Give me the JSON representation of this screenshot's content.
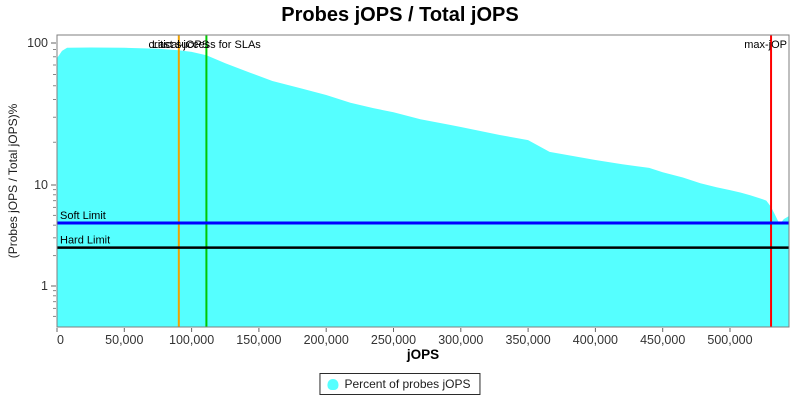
{
  "title": "Probes jOPS / Total jOPS",
  "chart_data": {
    "type": "area",
    "title": "Probes jOPS / Total jOPS",
    "xlabel": "jOPS",
    "ylabel": "(Probes jOPS / Total jOPS)%",
    "x_ticks": [
      0,
      50000,
      100000,
      150000,
      200000,
      250000,
      300000,
      350000,
      400000,
      450000,
      500000
    ],
    "x_tick_labels": [
      "0",
      "50,000",
      "100,000",
      "150,000",
      "200,000",
      "250,000",
      "300,000",
      "350,000",
      "400,000",
      "450,000",
      "500,000"
    ],
    "y_scale": "log",
    "y_ticks": [
      100,
      10,
      1
    ],
    "y_tick_labels": [
      "100",
      "10",
      "1"
    ],
    "xlim": [
      0,
      543500
    ],
    "ylim": [
      0.45,
      110
    ],
    "grid": "off",
    "legend": {
      "position": "bottom-center",
      "entries": [
        {
          "label": "Percent of probes jOPS",
          "color": "#55FFFF"
        }
      ]
    },
    "series": [
      {
        "name": "Percent of probes jOPS",
        "color": "#55FFFF",
        "x": [
          0,
          3700,
          7500,
          25000,
          50000,
          75000,
          90500,
          100000,
          111000,
          125000,
          143000,
          160000,
          181000,
          200000,
          218000,
          235000,
          250000,
          270000,
          292000,
          300000,
          329000,
          350000,
          366000,
          400000,
          420000,
          440000,
          450000,
          465000,
          478000,
          490000,
          500000,
          508000,
          515000,
          522000,
          527000,
          530500,
          533500,
          536000,
          538000,
          540000,
          543500
        ],
        "y": [
          78,
          88,
          92.5,
          93,
          92.5,
          91,
          89,
          86.5,
          82,
          72,
          62,
          54,
          48,
          43,
          38,
          34.8,
          32.5,
          29,
          26.5,
          25.6,
          22.5,
          20.7,
          17.1,
          15.0,
          14.0,
          13.2,
          12.3,
          11.3,
          10.3,
          9.5,
          8.9,
          8.4,
          7.9,
          7.4,
          7.0,
          6.05,
          5.05,
          4.3,
          4.25,
          4.6,
          4.9
        ]
      }
    ],
    "markers": {
      "vertical": [
        {
          "id": "critical-jops",
          "label": "critical-jOPS",
          "x": 90500,
          "color": "#EFA100",
          "label_pos": "center"
        },
        {
          "id": "last-success-for-slas",
          "label": "Last success for SLAs",
          "x": 111000,
          "color": "#00C800",
          "label_pos": "center"
        },
        {
          "id": "max-jops",
          "label": "max-jOP",
          "x": 530500,
          "color": "#FF0000",
          "label_pos": "plot-right"
        }
      ],
      "horizontal": [
        {
          "id": "soft-limit",
          "label": "Soft Limit",
          "y": 4.2,
          "color": "#0000FF",
          "width": 3
        },
        {
          "id": "hard-limit",
          "label": "Hard Limit",
          "y": 2.4,
          "color": "#000000",
          "width": 2.5
        }
      ]
    }
  }
}
